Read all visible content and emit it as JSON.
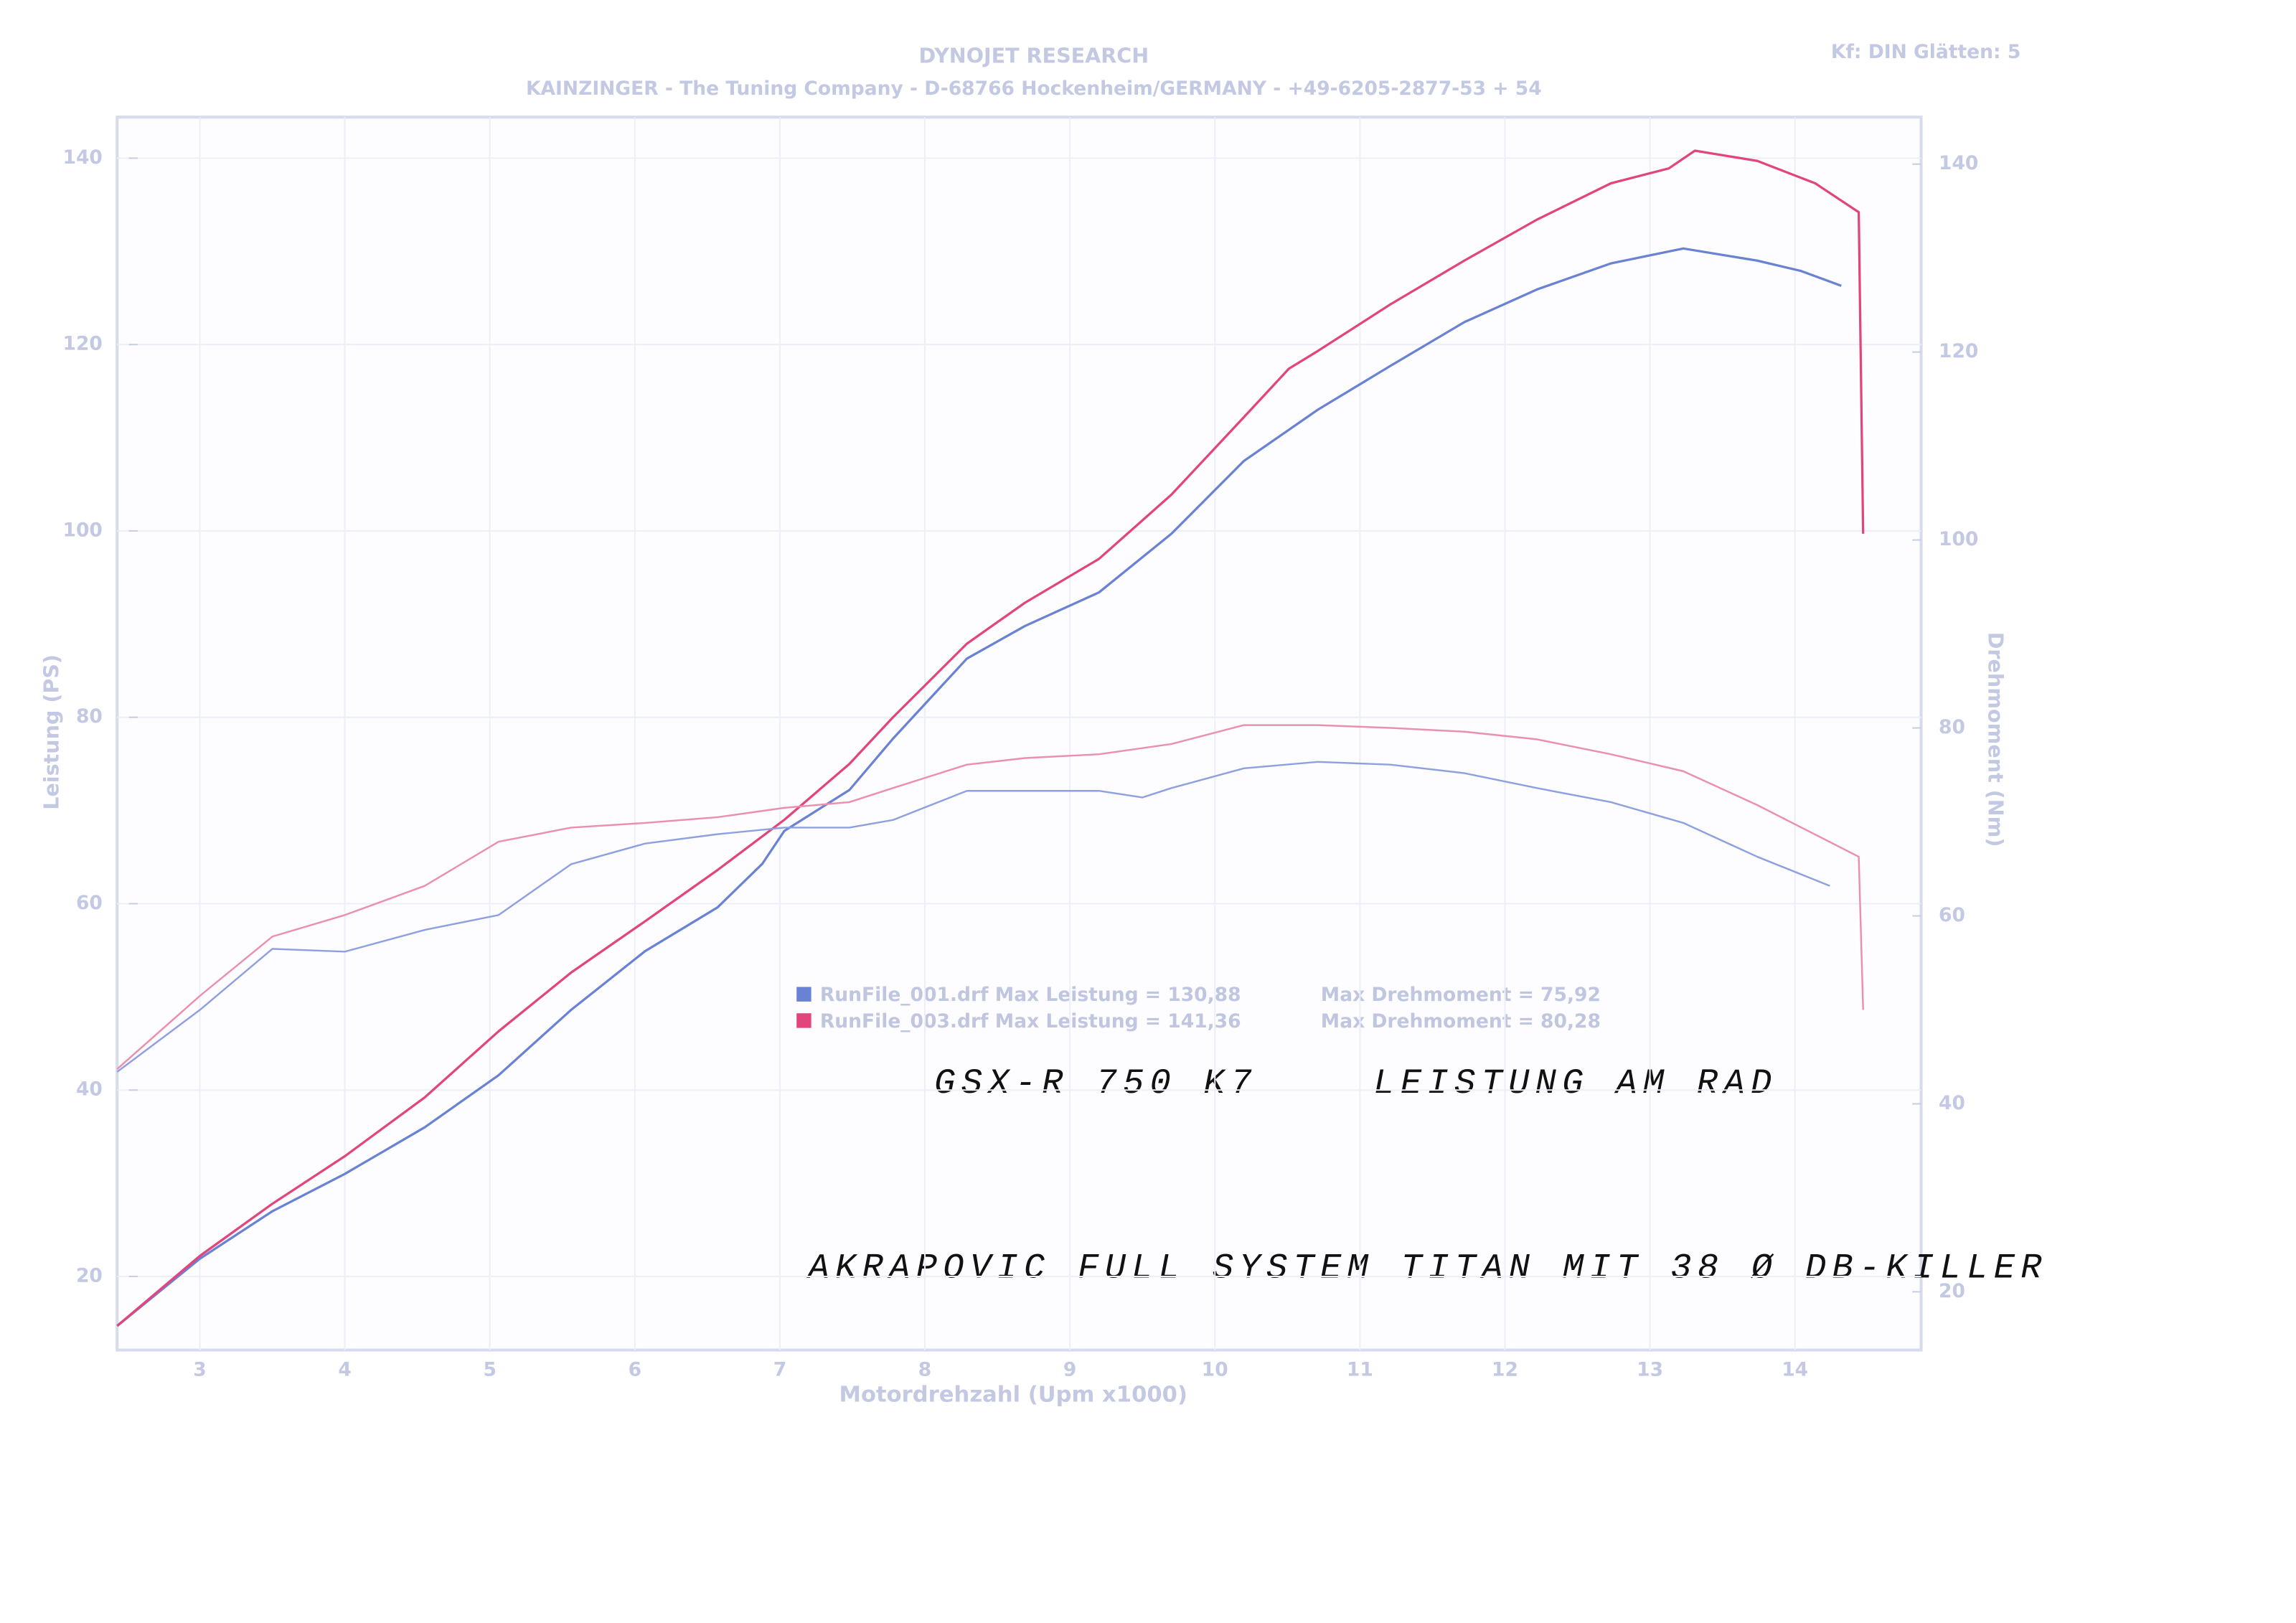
{
  "chart_data": {
    "type": "line",
    "title": "DYNOJET RESEARCH",
    "subtitle": "KAINZINGER - The Tuning Company - D-68766 Hockenheim/GERMANY - +49-6205-2877-53 + 54",
    "corner_note": "Kf: DIN  Glätten: 5",
    "x_label": "Motordrehzahl (Upm x1000)",
    "y_label": "Leistung (PS)",
    "y2_label": "Drehmoment (Nm)",
    "xlim": [
      2.43,
      14.87
    ],
    "ylim": [
      12.1,
      144.4
    ],
    "y2lim": [
      13.8,
      145
    ],
    "xticks": [
      3,
      4,
      5,
      6,
      7,
      8,
      9,
      10,
      11,
      12,
      13,
      14
    ],
    "yticks": [
      20,
      40,
      60,
      80,
      100,
      120,
      140
    ],
    "y2ticks": [
      20,
      40,
      60,
      80,
      100,
      120,
      140
    ],
    "grid": true,
    "series": [
      {
        "name": "RunFile_001.drf Max Leistung = 130,88",
        "color": "#6a82d4",
        "x": [
          2.43,
          3,
          3.5,
          4,
          4.55,
          5.06,
          5.56,
          6.07,
          6.57,
          6.88,
          7.03,
          7.48,
          7.78,
          8.29,
          8.69,
          9.2,
          9.7,
          10.2,
          10.71,
          11.21,
          11.72,
          12.22,
          12.73,
          13.23,
          13.74,
          14.04,
          14.32
        ],
        "values": [
          14.7,
          21.9,
          27,
          31,
          36,
          41.6,
          48.6,
          54.9,
          59.6,
          64.3,
          67.8,
          72.2,
          77.7,
          86.3,
          89.8,
          93.4,
          99.7,
          107.5,
          113,
          117.7,
          122.4,
          125.9,
          128.7,
          130.3,
          129,
          127.9,
          126.3
        ]
      },
      {
        "name": "RunFile_003.drf Max Leistung = 141,36",
        "color": "#e2457c",
        "x": [
          2.43,
          3,
          3.5,
          4,
          4.55,
          5.06,
          5.56,
          6.07,
          6.57,
          7.03,
          7.48,
          7.78,
          8.29,
          8.69,
          9.2,
          9.7,
          10.2,
          10.51,
          10.71,
          11.21,
          11.72,
          12.22,
          12.73,
          13.13,
          13.31,
          13.74,
          14.14,
          14.44,
          14.47
        ],
        "values": [
          14.7,
          22.2,
          27.8,
          32.9,
          39.2,
          46.3,
          52.6,
          58.1,
          63.6,
          69,
          75,
          80,
          87.9,
          92.3,
          97,
          103.9,
          112.2,
          117.4,
          119.3,
          124.3,
          129,
          133.4,
          137.3,
          138.9,
          140.8,
          139.7,
          137.3,
          134.2,
          99.7
        ]
      },
      {
        "name": "Max Drehmoment = 75,92",
        "color": "#8fa0e0",
        "axis": "y2",
        "x": [
          2.43,
          3,
          3.5,
          4,
          4.55,
          5.06,
          5.56,
          6.07,
          6.57,
          7.03,
          7.48,
          7.78,
          8.29,
          8.69,
          9.2,
          9.5,
          9.7,
          10.2,
          10.71,
          11.21,
          11.72,
          12.22,
          12.73,
          13.23,
          13.74,
          14.24
        ],
        "values": [
          43.4,
          50,
          56.5,
          56.2,
          58.5,
          60.1,
          65.5,
          67.7,
          68.7,
          69.4,
          69.4,
          70.2,
          73.3,
          73.3,
          73.3,
          72.6,
          73.6,
          75.7,
          76.4,
          76.1,
          75.2,
          73.6,
          72.1,
          69.9,
          66.3,
          63.2
        ]
      },
      {
        "name": "Max Drehmoment = 80,28",
        "color": "#ea8fb0",
        "axis": "y2",
        "x": [
          2.43,
          3,
          3.5,
          4,
          4.55,
          5.06,
          5.56,
          6.07,
          6.57,
          7.03,
          7.48,
          7.78,
          8.29,
          8.69,
          9.2,
          9.7,
          10.2,
          10.71,
          11.21,
          11.72,
          12.22,
          12.73,
          13.23,
          13.74,
          14.44,
          14.47
        ],
        "values": [
          43.7,
          51.5,
          57.8,
          60.1,
          63.2,
          67.9,
          69.4,
          69.9,
          70.5,
          71.5,
          72.1,
          73.6,
          76.1,
          76.8,
          77.2,
          78.3,
          80.3,
          80.3,
          80,
          79.6,
          78.8,
          77.2,
          75.4,
          71.8,
          66.3,
          50
        ]
      }
    ],
    "annotations": [
      "GSX-R  750  K7",
      "LEISTUNG AM RAD",
      "AKRAPOVIC FULL SYSTEM TITAN  MIT  38 Ø  DB-KILLER"
    ]
  }
}
